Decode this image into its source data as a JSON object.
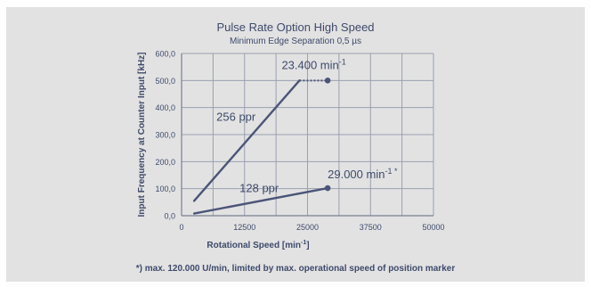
{
  "chart_data": {
    "type": "line",
    "title": "Pulse Rate Option High Speed",
    "subtitle": "Minimum Edge Separation 0,5 µs",
    "xlabel": "Rotational Speed [min-1]",
    "ylabel": "Input Frequency at Counter Input  [kHz]",
    "xlim": [
      0,
      50000
    ],
    "ylim": [
      0,
      600
    ],
    "x_ticks": [
      "0",
      "12500",
      "25000",
      "37500",
      "50000"
    ],
    "y_ticks": [
      "0,0",
      "100,0",
      "200,0",
      "300,0",
      "400,0",
      "500,0",
      "600,0"
    ],
    "grid": true,
    "series": [
      {
        "name": "256 ppr",
        "x": [
          2500,
          23400
        ],
        "y": [
          55,
          500
        ],
        "annotation": "23.400 min-1",
        "extension": {
          "x": [
            23400,
            29000
          ],
          "y": [
            500,
            500
          ],
          "style": "dotted"
        }
      },
      {
        "name": "128 ppr",
        "x": [
          2500,
          29000
        ],
        "y": [
          8,
          102
        ],
        "annotation": "29.000 min-1 *"
      }
    ],
    "footnote": "*) max. 120.000 U/min, limited by max. operational speed of position marker"
  },
  "colors": {
    "background": "#e2e2e2",
    "line": "#4a5578",
    "grid": "#9aa0b0",
    "text": "#3e4a6b",
    "axis": "#7a8090"
  }
}
